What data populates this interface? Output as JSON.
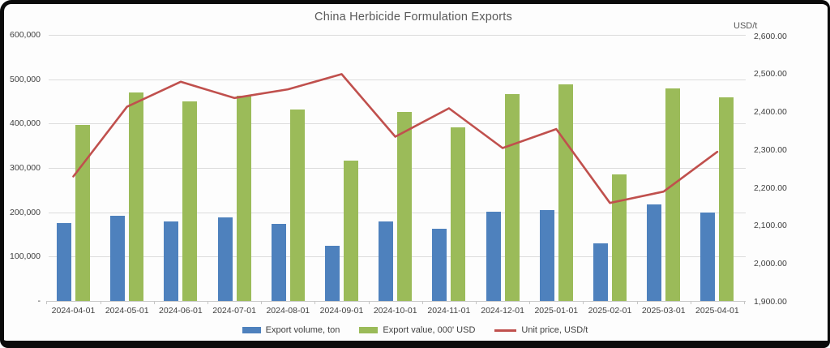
{
  "title": "China Herbicide Formulation Exports",
  "chart_data": {
    "type": "combo-bar-line",
    "title": "China Herbicide Formulation Exports",
    "categories": [
      "2024-04-01",
      "2024-05-01",
      "2024-06-01",
      "2024-07-01",
      "2024-08-01",
      "2024-09-01",
      "2024-10-01",
      "2024-11-01",
      "2024-12-01",
      "2025-01-01",
      "2025-02-01",
      "2025-03-01",
      "2025-04-01"
    ],
    "series": [
      {
        "name": "Export volume, ton",
        "chart_type": "bar",
        "axis": "left",
        "color": "#4E81BD",
        "values": [
          176000,
          193000,
          180000,
          188000,
          173000,
          125000,
          180000,
          162000,
          201000,
          205000,
          130000,
          218000,
          200000
        ]
      },
      {
        "name": "Export value, 000' USD",
        "chart_type": "bar",
        "axis": "left",
        "color": "#9BBB59",
        "values": [
          397000,
          471000,
          450000,
          463000,
          431000,
          317000,
          426000,
          392000,
          466000,
          489000,
          285000,
          480000,
          459000
        ]
      },
      {
        "name": "Unit price, USD/t",
        "chart_type": "line",
        "axis": "right",
        "color": "#C0504D",
        "values": [
          2230,
          2414,
          2480,
          2437,
          2460,
          2500,
          2335,
          2410,
          2305,
          2355,
          2160,
          2190,
          2295
        ]
      }
    ],
    "left_axis": {
      "min": 0,
      "max": 600000,
      "tick_labels": [
        "600,000",
        "500,000",
        "400,000",
        "300,000",
        "200,000",
        "100,000",
        "-"
      ]
    },
    "right_axis": {
      "min": 1900,
      "max": 2600,
      "unit": "USD/t",
      "tick_labels": [
        "2,600.00",
        "2,500.00",
        "2,400.00",
        "2,300.00",
        "2,200.00",
        "2,100.00",
        "2,000.00",
        "1,900.00"
      ]
    },
    "grid": true,
    "legend_position": "bottom"
  }
}
